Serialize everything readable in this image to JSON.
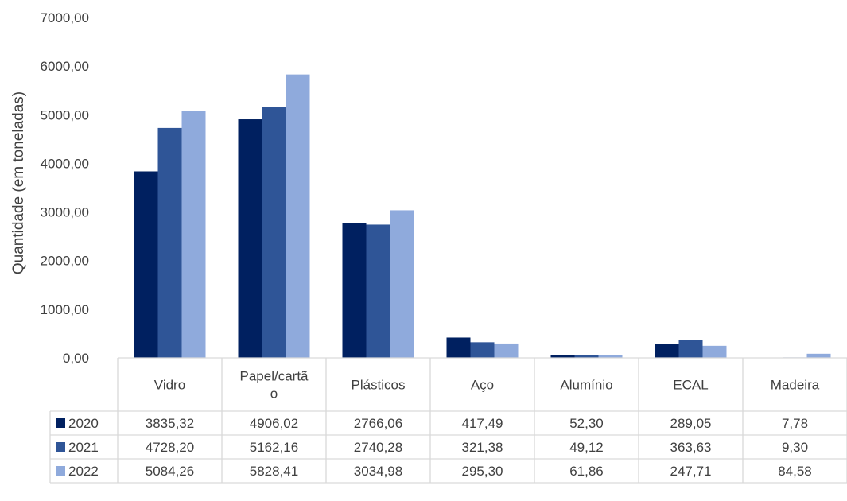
{
  "chart_data": {
    "type": "bar",
    "title": "",
    "xlabel": "",
    "ylabel": "Quantidade (em toneladas)",
    "ylim": [
      0,
      7000
    ],
    "yticks": [
      0,
      1000,
      2000,
      3000,
      4000,
      5000,
      6000,
      7000
    ],
    "ytick_labels": [
      "0,00",
      "1000,00",
      "2000,00",
      "3000,00",
      "4000,00",
      "5000,00",
      "6000,00",
      "7000,00"
    ],
    "grid": false,
    "legend": "data-table",
    "categories": [
      "Vidro",
      "Papel/cartão",
      "Plásticos",
      "Aço",
      "Alumínio",
      "ECAL",
      "Madeira"
    ],
    "category_display": [
      [
        "Vidro"
      ],
      [
        "Papel/cartã",
        "o"
      ],
      [
        "Plásticos"
      ],
      [
        "Aço"
      ],
      [
        "Alumínio"
      ],
      [
        "ECAL"
      ],
      [
        "Madeira"
      ]
    ],
    "series": [
      {
        "name": "2020",
        "color": "#002060",
        "values": [
          3835.32,
          4906.02,
          2766.06,
          417.49,
          52.3,
          289.05,
          7.78
        ],
        "labels": [
          "3835,32",
          "4906,02",
          "2766,06",
          "417,49",
          "52,30",
          "289,05",
          "7,78"
        ]
      },
      {
        "name": "2021",
        "color": "#2F5597",
        "values": [
          4728.2,
          5162.16,
          2740.28,
          321.38,
          49.12,
          363.63,
          9.3
        ],
        "labels": [
          "4728,20",
          "5162,16",
          "2740,28",
          "321,38",
          "49,12",
          "363,63",
          "9,30"
        ]
      },
      {
        "name": "2022",
        "color": "#8FAADC",
        "values": [
          5084.26,
          5828.41,
          3034.98,
          295.3,
          61.86,
          247.71,
          84.58
        ],
        "labels": [
          "5084,26",
          "5828,41",
          "3034,98",
          "295,30",
          "61,86",
          "247,71",
          "84,58"
        ]
      }
    ]
  }
}
